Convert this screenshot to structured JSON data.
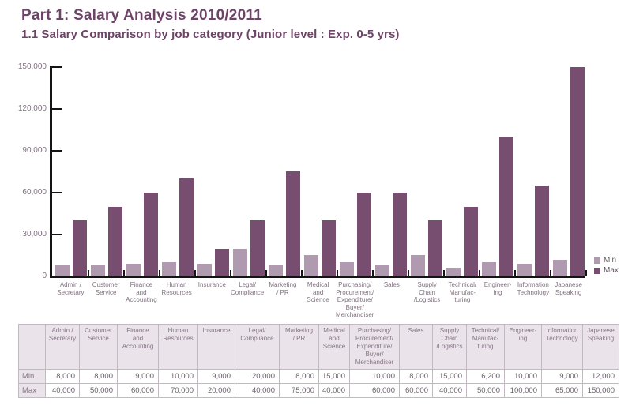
{
  "title": "Part 1: Salary Analysis 2010/2011",
  "subtitle": "1.1 Salary Comparison by job category (Junior level : Exp. 0-5 yrs)",
  "colors": {
    "heading": "#6d4367",
    "min_bar": "#b09ab0",
    "max_bar": "#774e70",
    "axis": "#141414",
    "axis_label": "#80717f",
    "table_header_bg": "#eae3ea",
    "table_border": "#c2b9c2",
    "table_header_text": "#857785",
    "table_value_text": "#6b616b"
  },
  "legend": [
    {
      "label": "Min",
      "color": "#b09ab0"
    },
    {
      "label": "Max",
      "color": "#774e70"
    }
  ],
  "chart_data": {
    "type": "bar",
    "title": "1.1 Salary Comparison by job category (Junior level : Exp. 0-5 yrs)",
    "categories": [
      "Admin / Secretary",
      "Customer Service",
      "Finance and Accounting",
      "Human Resources",
      "Insurance",
      "Legal/ Compliance",
      "Marketing / PR",
      "Medical and Science",
      "Purchasing/ Procurement/ Expenditure/ Buyer/ Merchandiser",
      "Sales",
      "Supply Chain /Logistics",
      "Technical/ Manufacturing",
      "Engineering",
      "Information Technology",
      "Japanese Speaking"
    ],
    "category_label_lines": [
      [
        "Admin /",
        "Secretary"
      ],
      [
        "Customer",
        "Service"
      ],
      [
        "Finance",
        "and",
        "Accounting"
      ],
      [
        "Human",
        "Resources"
      ],
      [
        "Insurance"
      ],
      [
        "Legal/",
        "Compliance"
      ],
      [
        "Marketing",
        "/ PR"
      ],
      [
        "Medical",
        "and",
        "Science"
      ],
      [
        "Purchasing/",
        "Procurement/",
        "Expenditure/",
        "Buyer/",
        "Merchandiser"
      ],
      [
        "Sales"
      ],
      [
        "Supply",
        "Chain",
        "/Logistics"
      ],
      [
        "Technical/",
        "Manufac-",
        "turing"
      ],
      [
        "Engineer-",
        "ing"
      ],
      [
        "Information",
        "Technology"
      ],
      [
        "Japanese",
        "Speaking"
      ]
    ],
    "series": [
      {
        "name": "Min",
        "values": [
          8000,
          8000,
          9000,
          10000,
          9000,
          20000,
          8000,
          15000,
          10000,
          8000,
          15000,
          6200,
          10000,
          9000,
          12000
        ]
      },
      {
        "name": "Max",
        "values": [
          40000,
          50000,
          60000,
          70000,
          20000,
          40000,
          75000,
          40000,
          60000,
          60000,
          40000,
          50000,
          100000,
          65000,
          150000
        ]
      }
    ],
    "ylim": [
      0,
      150000
    ],
    "yticks": [
      0,
      30000,
      60000,
      90000,
      120000,
      150000
    ],
    "ytick_labels": [
      "0",
      "30,000",
      "60,000",
      "90,000",
      "120,000",
      "150,000"
    ],
    "grid": false,
    "legend_position": "right"
  },
  "table": {
    "corner": "",
    "rows": [
      {
        "label": "Min",
        "values": [
          "8,000",
          "8,000",
          "9,000",
          "10,000",
          "9,000",
          "20,000",
          "8,000",
          "15,000",
          "10,000",
          "8,000",
          "15,000",
          "6,200",
          "10,000",
          "9,000",
          "12,000"
        ]
      },
      {
        "label": "Max",
        "values": [
          "40,000",
          "50,000",
          "60,000",
          "70,000",
          "20,000",
          "40,000",
          "75,000",
          "40,000",
          "60,000",
          "60,000",
          "40,000",
          "50,000",
          "100,000",
          "65,000",
          "150,000"
        ]
      }
    ]
  }
}
